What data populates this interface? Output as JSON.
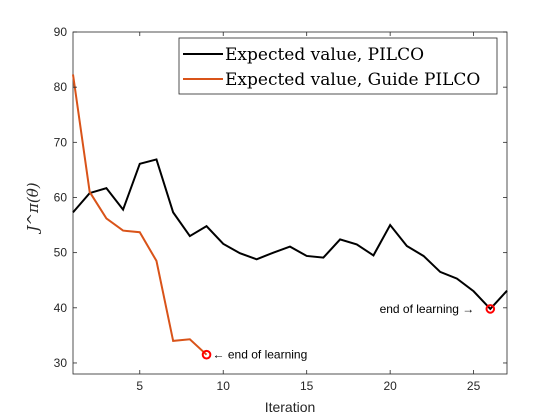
{
  "chart_data": {
    "type": "line",
    "xlabel": "Iteration",
    "ylabel": "J^π(θ)",
    "xlim": [
      1,
      27
    ],
    "ylim": [
      28,
      90
    ],
    "xticks": [
      5,
      10,
      15,
      20,
      25
    ],
    "yticks": [
      30,
      40,
      50,
      60,
      70,
      80,
      90
    ],
    "grid": false,
    "legend_position": "top-right",
    "series": [
      {
        "name": "Expected value, PILCO",
        "color": "#000000",
        "x": [
          1,
          2,
          3,
          4,
          5,
          6,
          7,
          8,
          9,
          10,
          11,
          12,
          13,
          14,
          15,
          16,
          17,
          18,
          19,
          20,
          21,
          22,
          23,
          24,
          25,
          26,
          27
        ],
        "y": [
          57.3,
          60.8,
          61.7,
          57.8,
          66.1,
          66.9,
          57.3,
          53.0,
          54.8,
          51.6,
          49.9,
          48.8,
          50.0,
          51.1,
          49.4,
          49.1,
          52.4,
          51.5,
          49.5,
          55.0,
          51.2,
          49.4,
          46.5,
          45.3,
          43.0,
          39.8,
          43.1
        ]
      },
      {
        "name": "Expected value, Guide PILCO",
        "color": "#d95319",
        "x": [
          1,
          2,
          3,
          4,
          5,
          6,
          7,
          8,
          9
        ],
        "y": [
          82.3,
          61.0,
          56.2,
          54.0,
          53.7,
          48.5,
          34.0,
          34.3,
          31.5
        ]
      }
    ],
    "annotations": [
      {
        "text": "← end of learning",
        "x": 9,
        "y": 31.5,
        "marker_color": "#ff0000"
      },
      {
        "text": "end of learning →",
        "x": 26,
        "y": 39.8,
        "marker_color": "#ff0000"
      }
    ]
  }
}
